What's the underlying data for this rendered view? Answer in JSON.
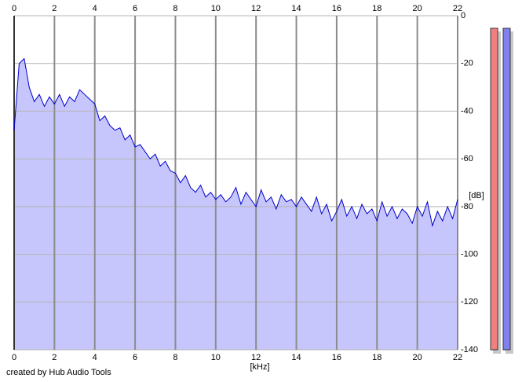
{
  "chart_data": {
    "type": "area",
    "x_label": "[kHz]",
    "y_label": "[dB]",
    "credit": "created by Hub Audio Tools",
    "x": [
      0,
      0.25,
      0.5,
      0.75,
      1,
      1.25,
      1.5,
      1.75,
      2,
      2.25,
      2.5,
      2.75,
      3,
      3.25,
      3.5,
      3.75,
      4,
      4.25,
      4.5,
      4.75,
      5,
      5.25,
      5.5,
      5.75,
      6,
      6.25,
      6.5,
      6.75,
      7,
      7.25,
      7.5,
      7.75,
      8,
      8.25,
      8.5,
      8.75,
      9,
      9.25,
      9.5,
      9.75,
      10,
      10.25,
      10.5,
      10.75,
      11,
      11.25,
      11.5,
      11.75,
      12,
      12.25,
      12.5,
      12.75,
      13,
      13.25,
      13.5,
      13.75,
      14,
      14.25,
      14.5,
      14.75,
      15,
      15.25,
      15.5,
      15.75,
      16,
      16.25,
      16.5,
      16.75,
      17,
      17.25,
      17.5,
      17.75,
      18,
      18.25,
      18.5,
      18.75,
      19,
      19.25,
      19.5,
      19.75,
      20,
      20.25,
      20.5,
      20.75,
      21,
      21.25,
      21.5,
      21.75,
      22
    ],
    "values": [
      -48,
      -20,
      -18,
      -30,
      -36,
      -33,
      -38,
      -34,
      -37,
      -33,
      -38,
      -34,
      -36,
      -31,
      -33,
      -35,
      -37,
      -44,
      -42,
      -46,
      -48,
      -47,
      -52,
      -50,
      -55,
      -54,
      -57,
      -60,
      -58,
      -63,
      -61,
      -65,
      -66,
      -70,
      -67,
      -72,
      -74,
      -71,
      -76,
      -74,
      -77,
      -75,
      -78,
      -76,
      -72,
      -79,
      -74,
      -77,
      -80,
      -73,
      -78,
      -76,
      -81,
      -75,
      -78,
      -77,
      -80,
      -76,
      -79,
      -82,
      -76,
      -83,
      -79,
      -86,
      -82,
      -77,
      -84,
      -80,
      -85,
      -79,
      -83,
      -81,
      -86,
      -78,
      -84,
      -80,
      -85,
      -81,
      -83,
      -87,
      -80,
      -84,
      -78,
      -88,
      -82,
      -86,
      -80,
      -85,
      -77
    ],
    "color": "#0000cc",
    "fill_color": "#c6c6fc",
    "xlim": [
      0,
      22
    ],
    "xticks": [
      0,
      2,
      4,
      6,
      8,
      10,
      12,
      14,
      16,
      18,
      20,
      22
    ],
    "ylim": [
      -140,
      0
    ],
    "yticks": [
      0,
      -20,
      -40,
      -60,
      -80,
      -100,
      -120,
      -140
    ],
    "grid": true
  }
}
